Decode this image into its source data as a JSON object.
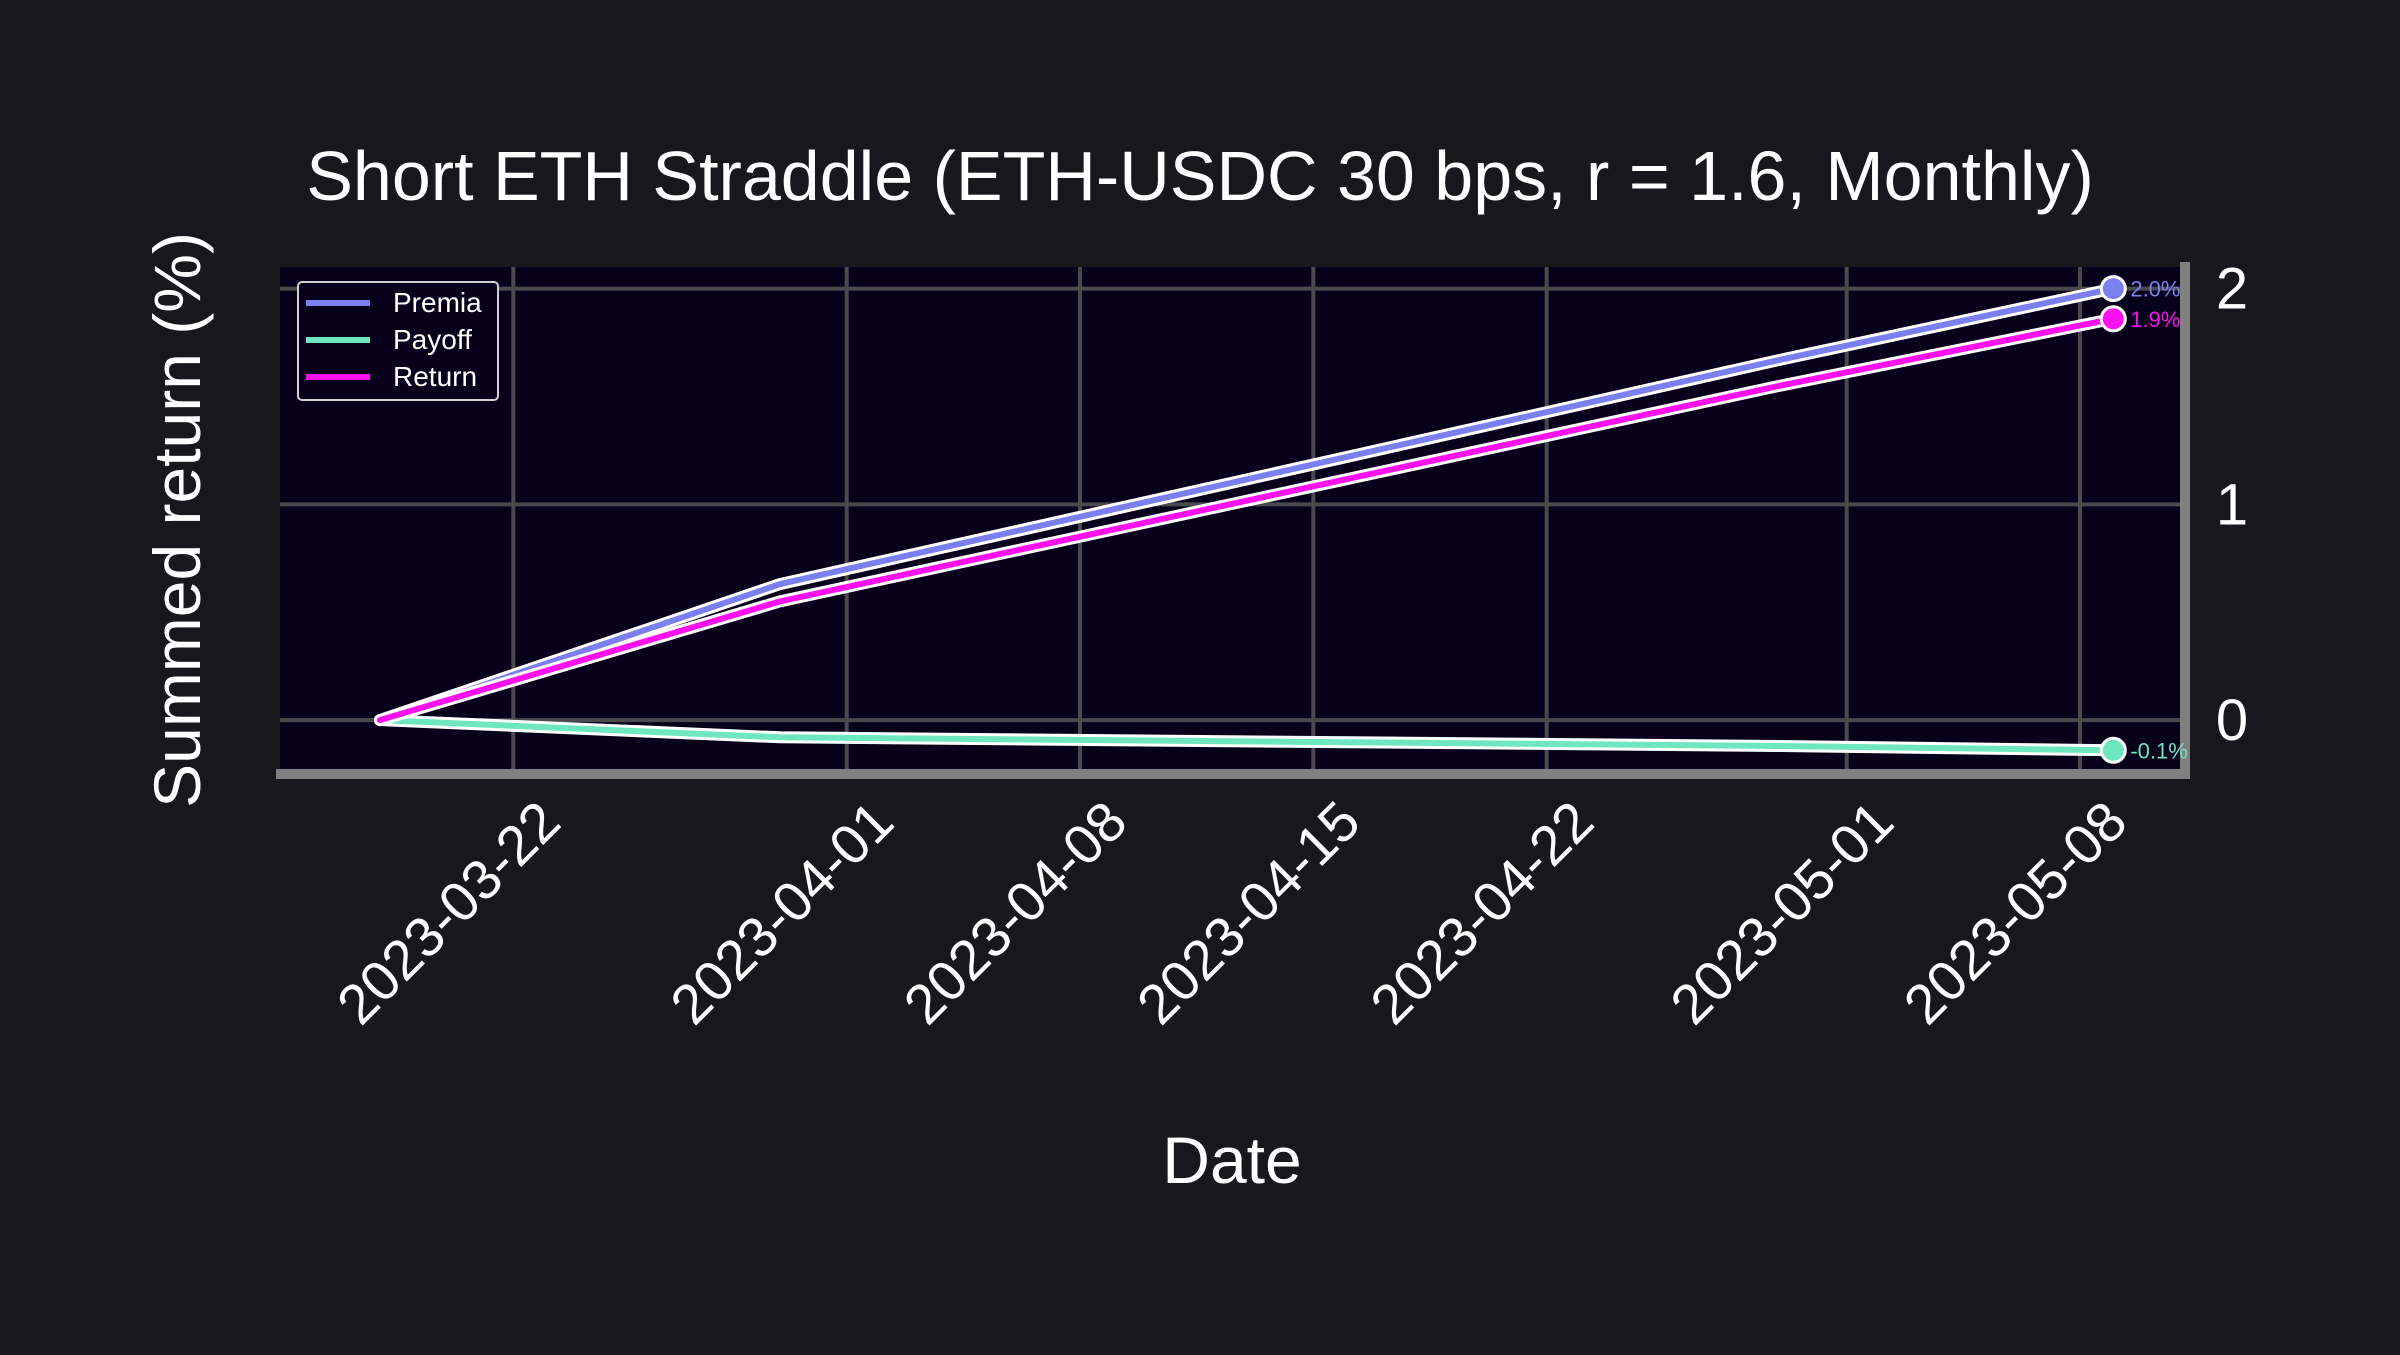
{
  "chart_data": {
    "type": "line",
    "title": "Short ETH Straddle (ETH-USDC 30 bps, r = 1.6, Monthly)",
    "xlabel": "Date",
    "ylabel": "Summed return (%)",
    "x": [
      "2023-03-18",
      "2023-03-30",
      "2023-04-29",
      "2023-05-09"
    ],
    "xlim": [
      "2023-03-15",
      "2023-05-11"
    ],
    "ylim": [
      -0.25,
      2.1
    ],
    "x_ticks": [
      "2023-03-22",
      "2023-04-01",
      "2023-04-08",
      "2023-04-15",
      "2023-04-22",
      "2023-05-01",
      "2023-05-08"
    ],
    "y_ticks": [
      0,
      1,
      2
    ],
    "y_axis_side": "right",
    "grid": true,
    "legend_position": "top-left",
    "series": [
      {
        "name": "Premia",
        "color": "#7b7ff0",
        "values": [
          0.0,
          0.63,
          1.67,
          2.0
        ],
        "end_label": "2.0%"
      },
      {
        "name": "Payoff",
        "color": "#6ee7c0",
        "values": [
          0.0,
          -0.08,
          -0.12,
          -0.14
        ],
        "end_label": "-0.1%"
      },
      {
        "name": "Return",
        "color": "#ff10ee",
        "values": [
          0.0,
          0.55,
          1.55,
          1.86
        ],
        "end_label": "1.9%"
      }
    ],
    "colors": {
      "page_background": "#18171c",
      "plot_background": "#07001a",
      "grid": "#4a4a4e",
      "spine": "#808080",
      "text": "#ffffff"
    }
  }
}
